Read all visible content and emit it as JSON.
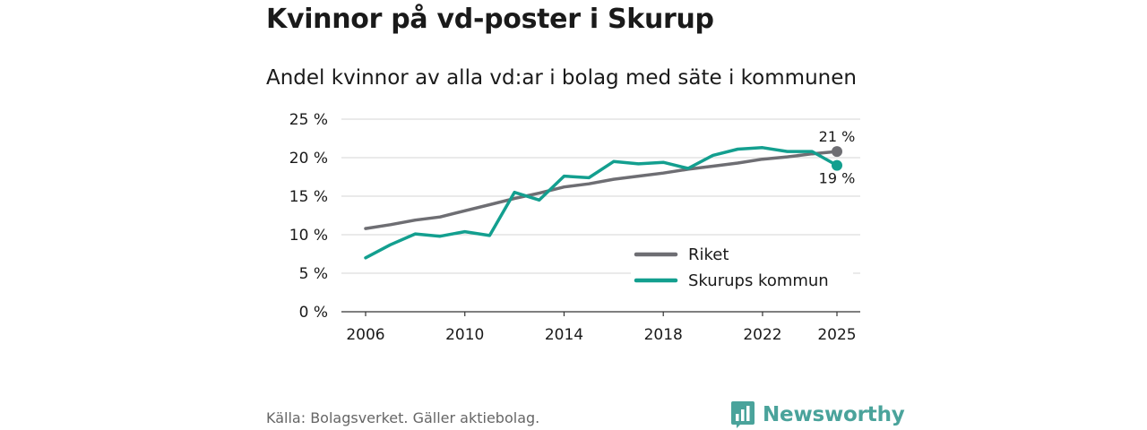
{
  "title": "Kvinnor på vd-poster i Skurup",
  "subtitle": "Andel kvinnor av alla vd:ar i bolag med säte i kommunen",
  "source": "Källa: Bolagsverket. Gäller aktiebolag.",
  "brand": {
    "name": "Newsworthy",
    "color": "#4aa39b",
    "icon": "bar-chart-bubble-icon"
  },
  "chart_data": {
    "type": "line",
    "title": "Kvinnor på vd-poster i Skurup",
    "subtitle": "Andel kvinnor av alla vd:ar i bolag med säte i kommunen",
    "xlabel": "",
    "ylabel": "",
    "xlim": [
      2006,
      2025
    ],
    "ylim": [
      0,
      25
    ],
    "x_ticks": [
      2006,
      2010,
      2014,
      2018,
      2022,
      2025
    ],
    "y_ticks": [
      0,
      5,
      10,
      15,
      20,
      25
    ],
    "y_tick_labels": [
      "0 %",
      "5 %",
      "10 %",
      "15 %",
      "20 %",
      "25 %"
    ],
    "grid": true,
    "legend_position": "bottom-right",
    "x": [
      2006,
      2007,
      2008,
      2009,
      2010,
      2011,
      2012,
      2013,
      2014,
      2015,
      2016,
      2017,
      2018,
      2019,
      2020,
      2021,
      2022,
      2023,
      2024,
      2025
    ],
    "series": [
      {
        "name": "Riket",
        "color": "#6e6e73",
        "values": [
          10.8,
          11.3,
          11.9,
          12.3,
          13.1,
          13.9,
          14.7,
          15.4,
          16.2,
          16.6,
          17.2,
          17.6,
          18.0,
          18.5,
          18.9,
          19.3,
          19.8,
          20.1,
          20.5,
          20.8
        ],
        "end_label": "21 %"
      },
      {
        "name": "Skurups kommun",
        "color": "#139f8f",
        "values": [
          7.0,
          8.7,
          10.1,
          9.8,
          10.4,
          9.9,
          15.5,
          14.5,
          17.6,
          17.4,
          19.5,
          19.2,
          19.4,
          18.6,
          20.3,
          21.1,
          21.3,
          20.8,
          20.8,
          19.0
        ],
        "end_label": "19 %"
      }
    ]
  }
}
